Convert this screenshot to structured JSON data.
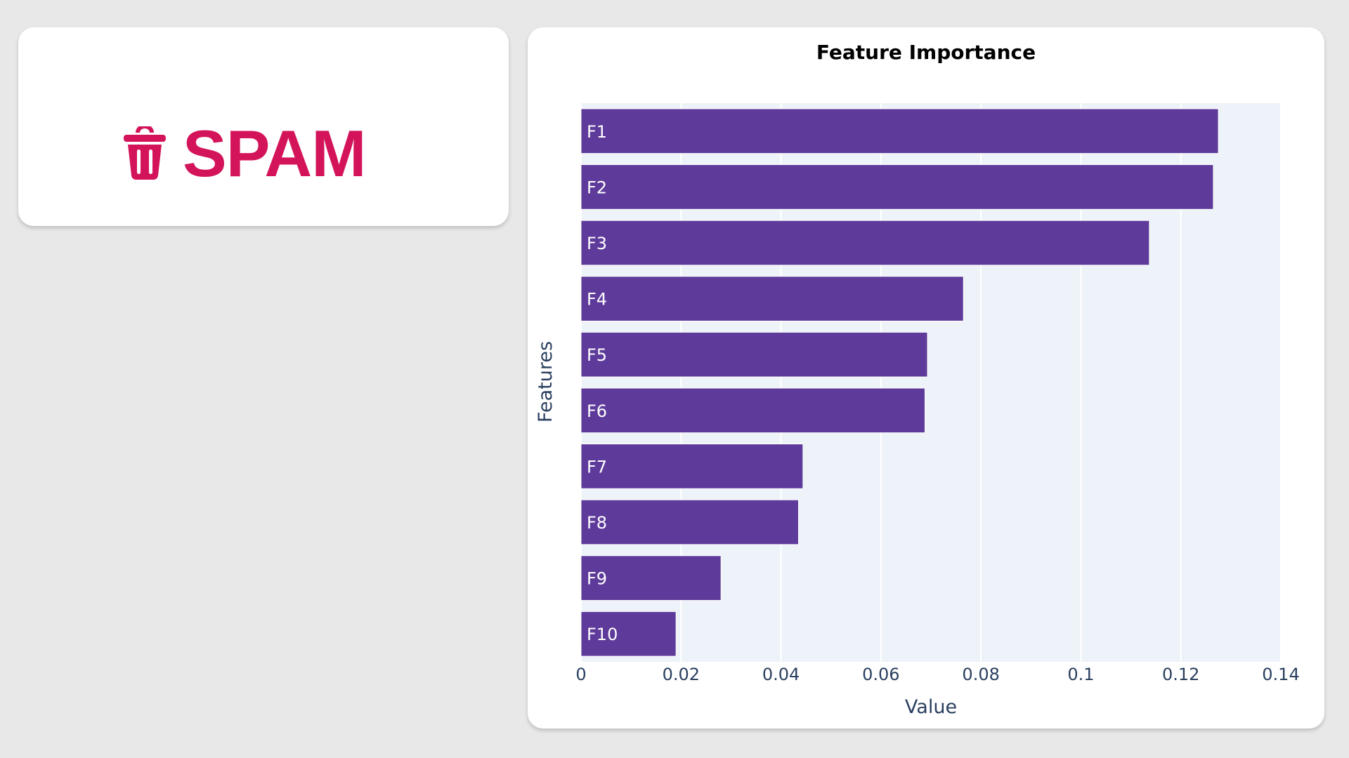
{
  "result": {
    "label": "SPAM",
    "icon": "trash-icon",
    "color": "#d4145a"
  },
  "chart_data": {
    "type": "bar",
    "orientation": "horizontal",
    "title": "Feature Importance",
    "xlabel": "Value",
    "ylabel": "Features",
    "categories": [
      "F1",
      "F2",
      "F3",
      "F4",
      "F5",
      "F6",
      "F7",
      "F8",
      "F9",
      "F10"
    ],
    "values": [
      0.1275,
      0.1265,
      0.1137,
      0.0765,
      0.0693,
      0.0688,
      0.0444,
      0.0435,
      0.028,
      0.019
    ],
    "xlim": [
      0,
      0.14
    ],
    "xticks": [
      "0",
      "0.02",
      "0.04",
      "0.06",
      "0.08",
      "0.1",
      "0.12",
      "0.14"
    ],
    "xtick_values": [
      0,
      0.02,
      0.04,
      0.06,
      0.08,
      0.1,
      0.12,
      0.14
    ],
    "bar_labels_inside": true,
    "grid": true,
    "bar_color": "#5e3a9a",
    "plot_background": "#eef3f9"
  }
}
